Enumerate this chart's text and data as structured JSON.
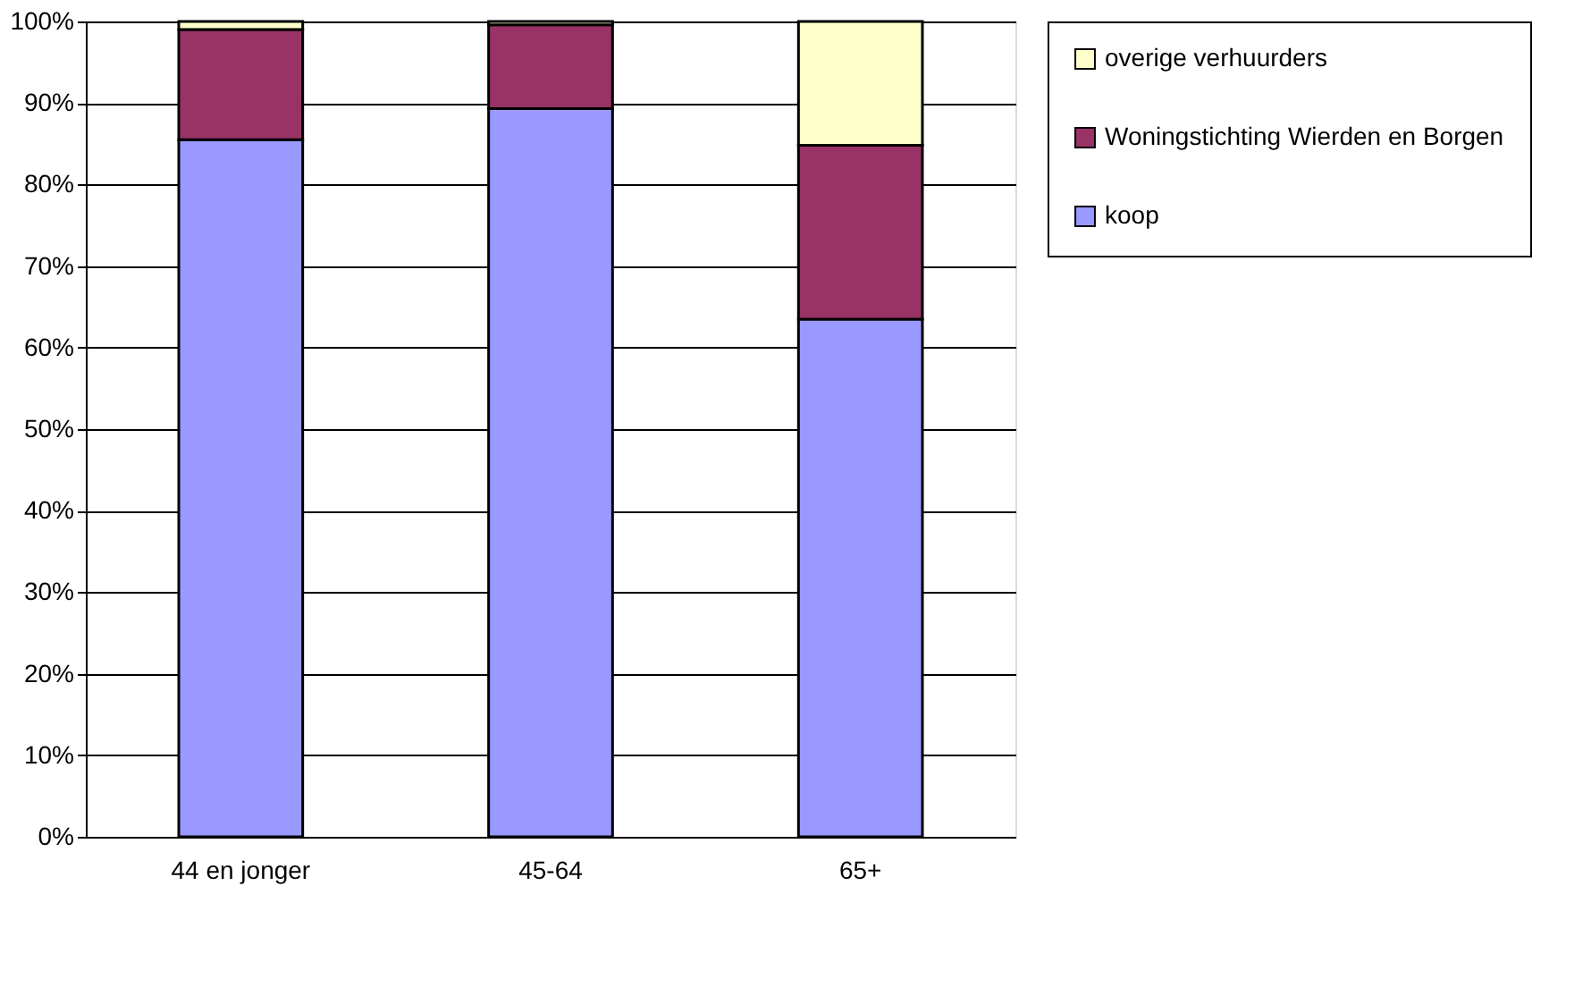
{
  "chart_data": {
    "type": "bar",
    "stacked": true,
    "categories": [
      "44 en jonger",
      "45-64",
      "65+"
    ],
    "series": [
      {
        "name": "koop",
        "color": "#9999ff",
        "values": [
          85.5,
          89.3,
          63.5
        ]
      },
      {
        "name": "Woningstichting Wierden en Borgen",
        "color": "#993366",
        "values": [
          13.5,
          10.3,
          21.3
        ]
      },
      {
        "name": "overige verhuurders",
        "color": "#ffffcc",
        "values": [
          1.0,
          0.4,
          15.2
        ]
      }
    ],
    "ylim": [
      0,
      100
    ],
    "yticks": [
      {
        "value": 0,
        "label": "0%"
      },
      {
        "value": 10,
        "label": "10%"
      },
      {
        "value": 20,
        "label": "20%"
      },
      {
        "value": 30,
        "label": "30%"
      },
      {
        "value": 40,
        "label": "40%"
      },
      {
        "value": 50,
        "label": "50%"
      },
      {
        "value": 60,
        "label": "60%"
      },
      {
        "value": 70,
        "label": "70%"
      },
      {
        "value": 80,
        "label": "80%"
      },
      {
        "value": 90,
        "label": "90%"
      },
      {
        "value": 100,
        "label": "100%"
      }
    ],
    "grid": "y",
    "legend": "right"
  }
}
